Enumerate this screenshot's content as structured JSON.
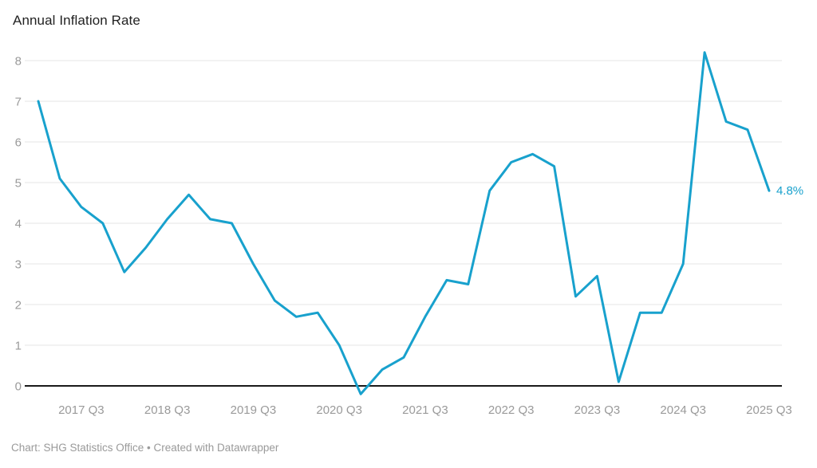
{
  "title": "Annual Inflation Rate",
  "footer": "Chart: SHG Statistics Office • Created with Datawrapper",
  "colors": {
    "line": "#18a1cd",
    "grid": "#e6e6e6",
    "zero_line": "#1a1a1a",
    "axis_text": "#9a9a9a",
    "title_text": "#222222"
  },
  "chart_data": {
    "type": "line",
    "title": "Annual Inflation Rate",
    "x": [
      "2017 Q1",
      "2017 Q2",
      "2017 Q3",
      "2017 Q4",
      "2018 Q1",
      "2018 Q2",
      "2018 Q3",
      "2018 Q4",
      "2019 Q1",
      "2019 Q2",
      "2019 Q3",
      "2019 Q4",
      "2020 Q1",
      "2020 Q2",
      "2020 Q3",
      "2020 Q4",
      "2021 Q1",
      "2021 Q2",
      "2021 Q3",
      "2021 Q4",
      "2022 Q1",
      "2022 Q2",
      "2022 Q3",
      "2022 Q4",
      "2023 Q1",
      "2023 Q2",
      "2023 Q3",
      "2023 Q4",
      "2024 Q1",
      "2024 Q2",
      "2024 Q3",
      "2024 Q4",
      "2025 Q1",
      "2025 Q2",
      "2025 Q3"
    ],
    "values": [
      7.0,
      5.1,
      4.4,
      4.0,
      2.8,
      3.4,
      4.1,
      4.7,
      4.1,
      4.0,
      3.0,
      2.1,
      1.7,
      1.8,
      1.0,
      -0.2,
      0.4,
      0.7,
      1.7,
      2.6,
      2.5,
      4.8,
      5.5,
      5.7,
      5.4,
      2.2,
      2.7,
      0.1,
      1.8,
      1.8,
      3.0,
      8.2,
      6.5,
      6.3,
      4.8
    ],
    "yticks": [
      0,
      1,
      2,
      3,
      4,
      5,
      6,
      7,
      8
    ],
    "ylim": [
      -0.5,
      8.5
    ],
    "xtick_labels": [
      "2017 Q3",
      "2018 Q3",
      "2019 Q3",
      "2020 Q3",
      "2021 Q3",
      "2022 Q3",
      "2023 Q3",
      "2024 Q3",
      "2025 Q3"
    ],
    "end_label": "4.8%",
    "xlabel": "",
    "ylabel": "",
    "grid": true,
    "legend": "none"
  }
}
